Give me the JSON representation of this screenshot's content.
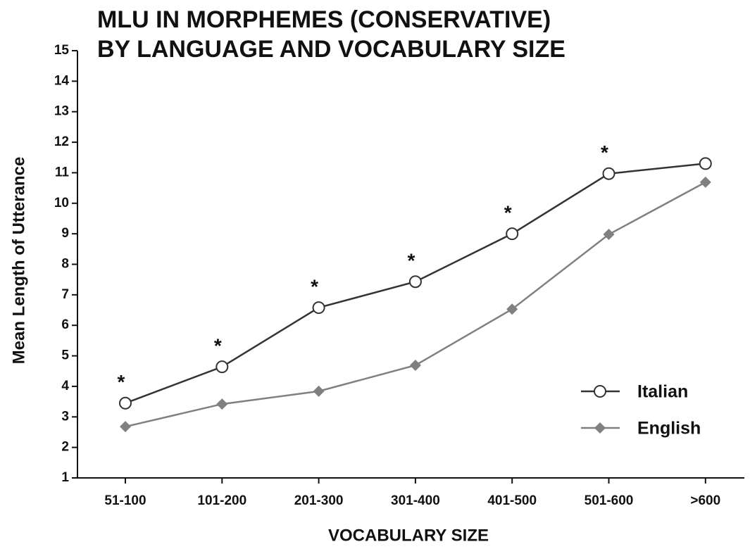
{
  "chart_data": {
    "type": "line",
    "title": [
      "MLU IN MORPHEMES (CONSERVATIVE)",
      "BY LANGUAGE AND VOCABULARY SIZE"
    ],
    "x_label": "VOCABULARY SIZE",
    "y_label": "Mean Length of Utterance",
    "categories": [
      "51-100",
      "101-200",
      "201-300",
      "301-400",
      "401-500",
      "501-600",
      ">600"
    ],
    "series": [
      {
        "name": "Italian",
        "color": "#333333",
        "marker": "circle",
        "values": [
          3.45,
          4.64,
          6.58,
          7.43,
          9.0,
          10.97,
          11.3
        ]
      },
      {
        "name": "English",
        "color": "#808080",
        "marker": "diamond",
        "values": [
          2.68,
          3.42,
          3.84,
          4.69,
          6.53,
          8.98,
          10.69
        ]
      }
    ],
    "annotations": [
      "*",
      "*",
      "*",
      "*",
      "*",
      "*",
      null
    ],
    "ylim": [
      1,
      15
    ],
    "yticks": [
      1,
      2,
      3,
      4,
      5,
      6,
      7,
      8,
      9,
      10,
      11,
      12,
      13,
      14,
      15
    ],
    "legend": "lower right",
    "grid": false
  }
}
